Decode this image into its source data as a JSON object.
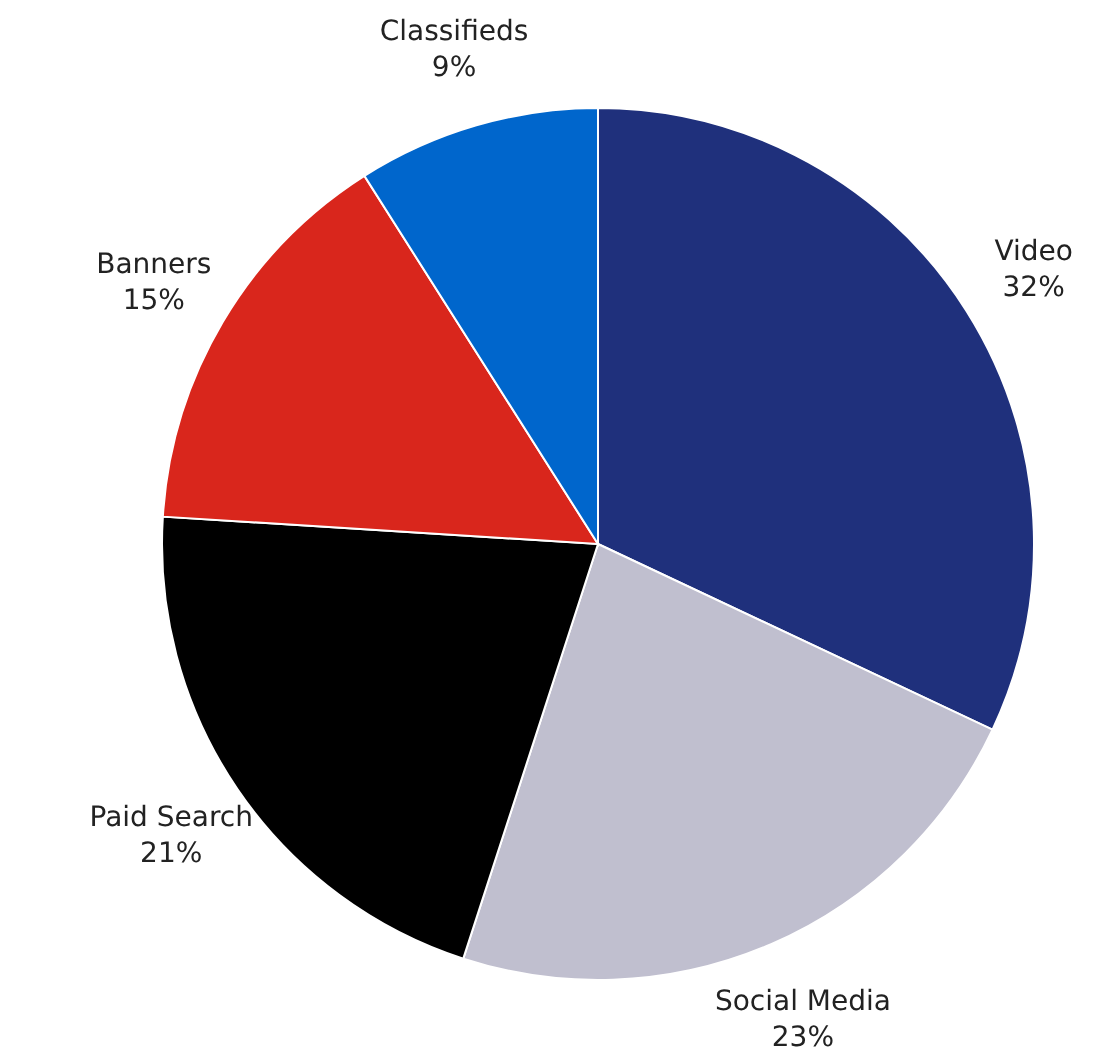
{
  "chart_data": {
    "type": "pie",
    "categories": [
      "Video",
      "Social Media",
      "Paid Search",
      "Banners",
      "Classifieds"
    ],
    "values": [
      32,
      23,
      21,
      15,
      9
    ],
    "value_labels": [
      "32%",
      "23%",
      "21%",
      "15%",
      "9%"
    ],
    "colors": [
      "#1f307c",
      "#c0bfcf",
      "#000000",
      "#d9261c",
      "#0066cc"
    ]
  }
}
